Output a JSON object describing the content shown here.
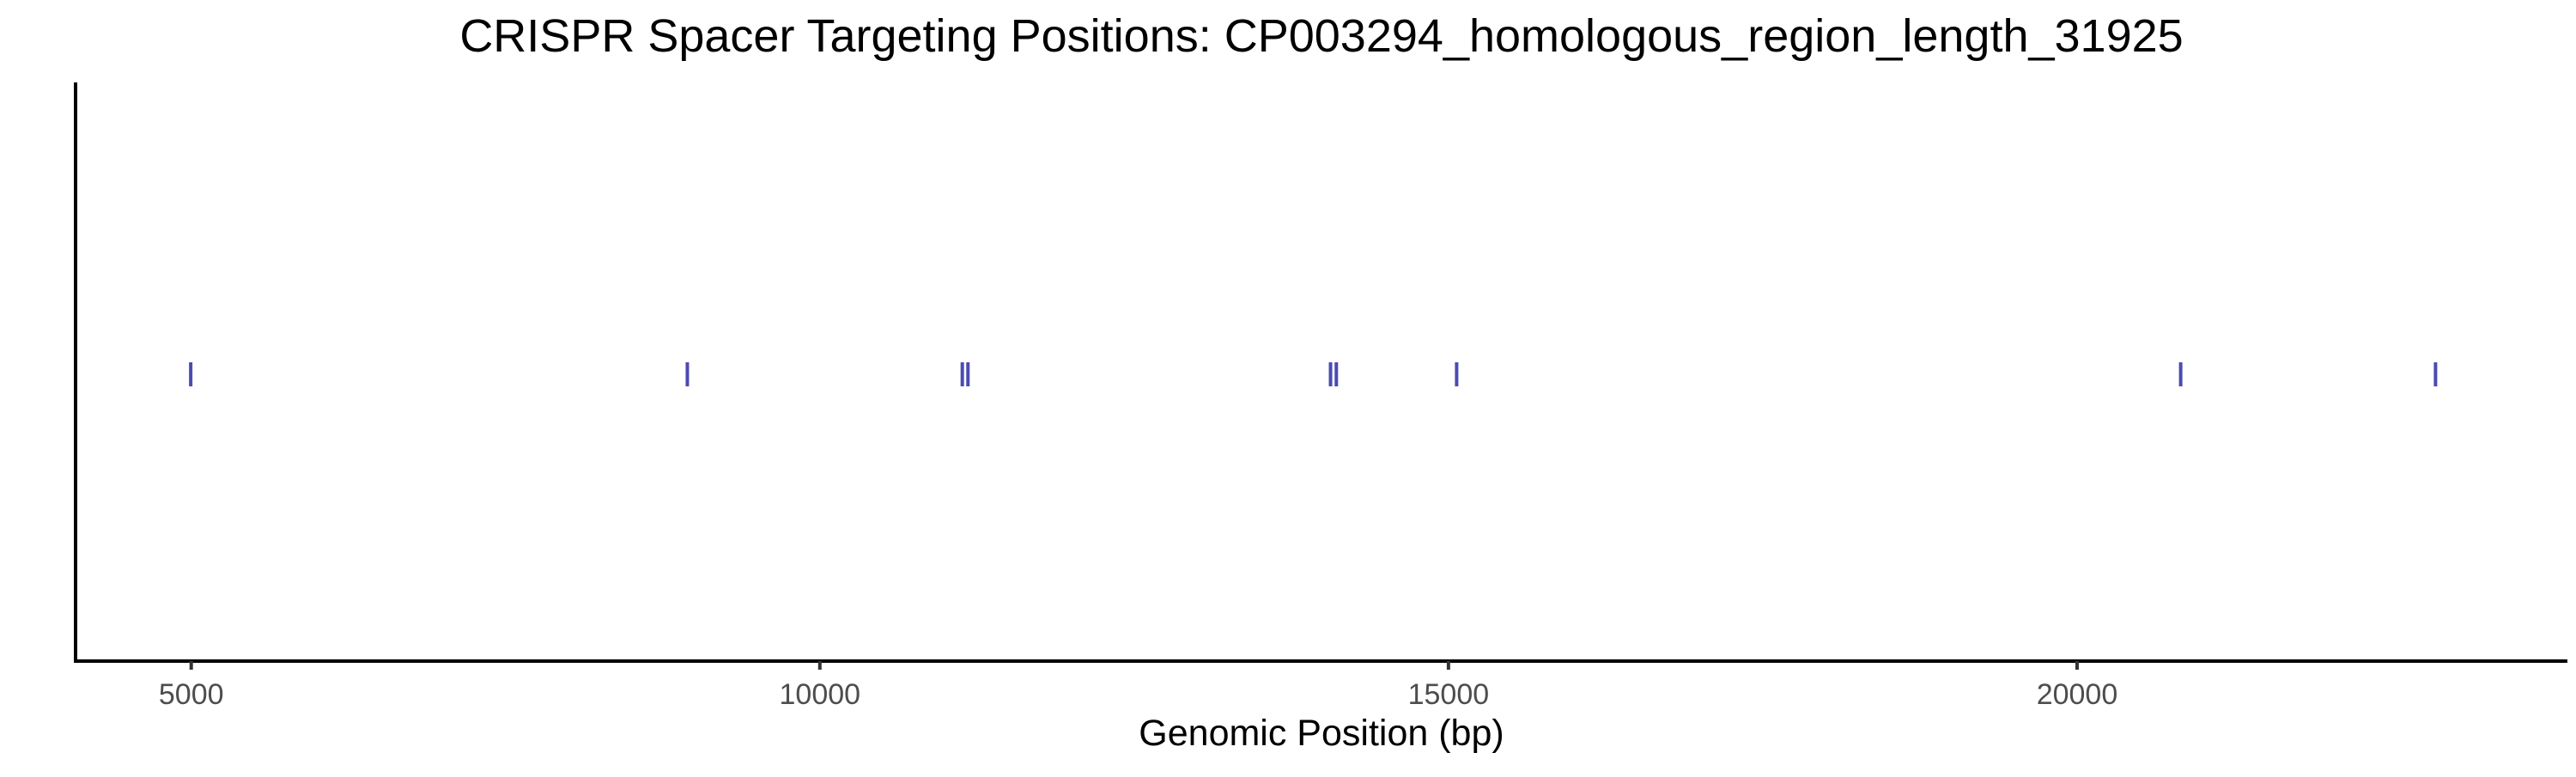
{
  "chart_data": {
    "type": "scatter",
    "title": "CRISPR Spacer Targeting Positions: CP003294_homologous_region_length_31925",
    "xlabel": "Genomic Position (bp)",
    "ylabel": "",
    "x_ticks": [
      5000,
      10000,
      15000,
      20000
    ],
    "tick_labels": [
      "5000",
      "10000",
      "15000",
      "20000"
    ],
    "xlim": [
      4080,
      23900
    ],
    "y_axis_text_visible": false,
    "grid": false,
    "legend": "none",
    "mark_color": "#4b4bb3",
    "series": [
      {
        "values": [
          4996,
          8946,
          11133,
          11178,
          14062,
          14108,
          15065,
          20824,
          22851
        ]
      }
    ]
  }
}
